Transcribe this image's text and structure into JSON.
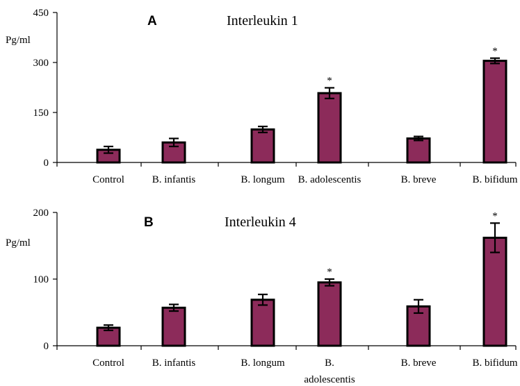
{
  "colors": {
    "bar": "#8c2b5a",
    "axis": "#000000"
  },
  "chart_data": [
    {
      "type": "bar",
      "panel": "A",
      "title": "Interleukin 1",
      "ylabel": "Pg/ml",
      "ylim": [
        0,
        450
      ],
      "yticks": [
        "0",
        "150",
        "300",
        "450"
      ],
      "categories": [
        "Control",
        "B. infantis",
        "B. longum",
        "B. adolescentis",
        "B. breve",
        "B. bifidum"
      ],
      "values": [
        38,
        60,
        99,
        208,
        72,
        305
      ],
      "errors": [
        10,
        12,
        9,
        16,
        6,
        8
      ],
      "significant": [
        false,
        false,
        false,
        true,
        false,
        true
      ],
      "marker": "*"
    },
    {
      "type": "bar",
      "panel": "B",
      "title": "Interleukin 4",
      "ylabel": "Pg/ml",
      "ylim": [
        0,
        200
      ],
      "yticks": [
        "0",
        "100",
        "200"
      ],
      "categories": [
        "Control",
        "B. infantis",
        "B. longum",
        "B. adolescentis",
        "B. breve",
        "B. bifidum"
      ],
      "category_label_lines": [
        [
          "Control"
        ],
        [
          "B. infantis"
        ],
        [
          "B. longum"
        ],
        [
          "B.",
          "adolescentis"
        ],
        [
          "B. breve"
        ],
        [
          "B. bifidum"
        ]
      ],
      "values": [
        27,
        57,
        69,
        95,
        59,
        162
      ],
      "errors": [
        4,
        5,
        8,
        5,
        10,
        22
      ],
      "significant": [
        false,
        false,
        false,
        true,
        false,
        true
      ],
      "marker": "*"
    }
  ]
}
